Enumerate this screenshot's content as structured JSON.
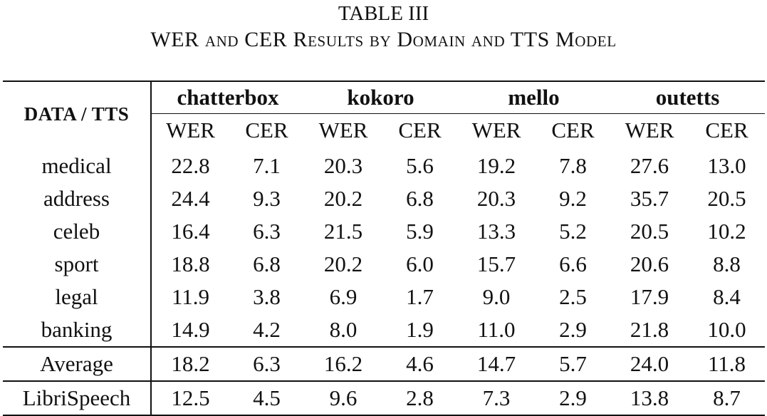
{
  "caption": {
    "label": "TABLE III",
    "title": "WER and CER Results by Domain and TTS Model"
  },
  "table": {
    "corner_label": "DATA / TTS",
    "models": [
      "chatterbox",
      "kokoro",
      "mello",
      "outetts"
    ],
    "metrics": [
      "WER",
      "CER"
    ],
    "rows": [
      {
        "label": "medical",
        "values": [
          "22.8",
          "7.1",
          "20.3",
          "5.6",
          "19.2",
          "7.8",
          "27.6",
          "13.0"
        ]
      },
      {
        "label": "address",
        "values": [
          "24.4",
          "9.3",
          "20.2",
          "6.8",
          "20.3",
          "9.2",
          "35.7",
          "20.5"
        ]
      },
      {
        "label": "celeb",
        "values": [
          "16.4",
          "6.3",
          "21.5",
          "5.9",
          "13.3",
          "5.2",
          "20.5",
          "10.2"
        ]
      },
      {
        "label": "sport",
        "values": [
          "18.8",
          "6.8",
          "20.2",
          "6.0",
          "15.7",
          "6.6",
          "20.6",
          "8.8"
        ]
      },
      {
        "label": "legal",
        "values": [
          "11.9",
          "3.8",
          "6.9",
          "1.7",
          "9.0",
          "2.5",
          "17.9",
          "8.4"
        ]
      },
      {
        "label": "banking",
        "values": [
          "14.9",
          "4.2",
          "8.0",
          "1.9",
          "11.0",
          "2.9",
          "21.8",
          "10.0"
        ]
      }
    ],
    "average": {
      "label": "Average",
      "values": [
        "18.2",
        "6.3",
        "16.2",
        "4.6",
        "14.7",
        "5.7",
        "24.0",
        "11.8"
      ]
    },
    "librispeech": {
      "label": "LibriSpeech",
      "values": [
        "12.5",
        "4.5",
        "9.6",
        "2.8",
        "7.3",
        "2.9",
        "13.8",
        "8.7"
      ]
    }
  }
}
